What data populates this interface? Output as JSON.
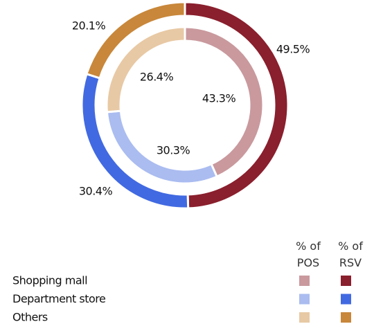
{
  "chart_data": {
    "type": "donut",
    "categories": [
      "Shopping mall",
      "Department store",
      "Others"
    ],
    "series": [
      {
        "name": "% of POS",
        "colors": [
          "#c9999e",
          "#aabcf0",
          "#e8c9a5"
        ],
        "values": [
          43.3,
          30.3,
          26.4
        ],
        "value_labels": [
          "43.3%",
          "30.3%",
          "26.4%"
        ]
      },
      {
        "name": "% of RSV",
        "colors": [
          "#8a1f2d",
          "#4169e1",
          "#c8873a"
        ],
        "values": [
          49.5,
          30.4,
          20.1
        ],
        "value_labels": [
          "49.5%",
          "30.4%",
          "20.1%"
        ]
      }
    ]
  }
}
